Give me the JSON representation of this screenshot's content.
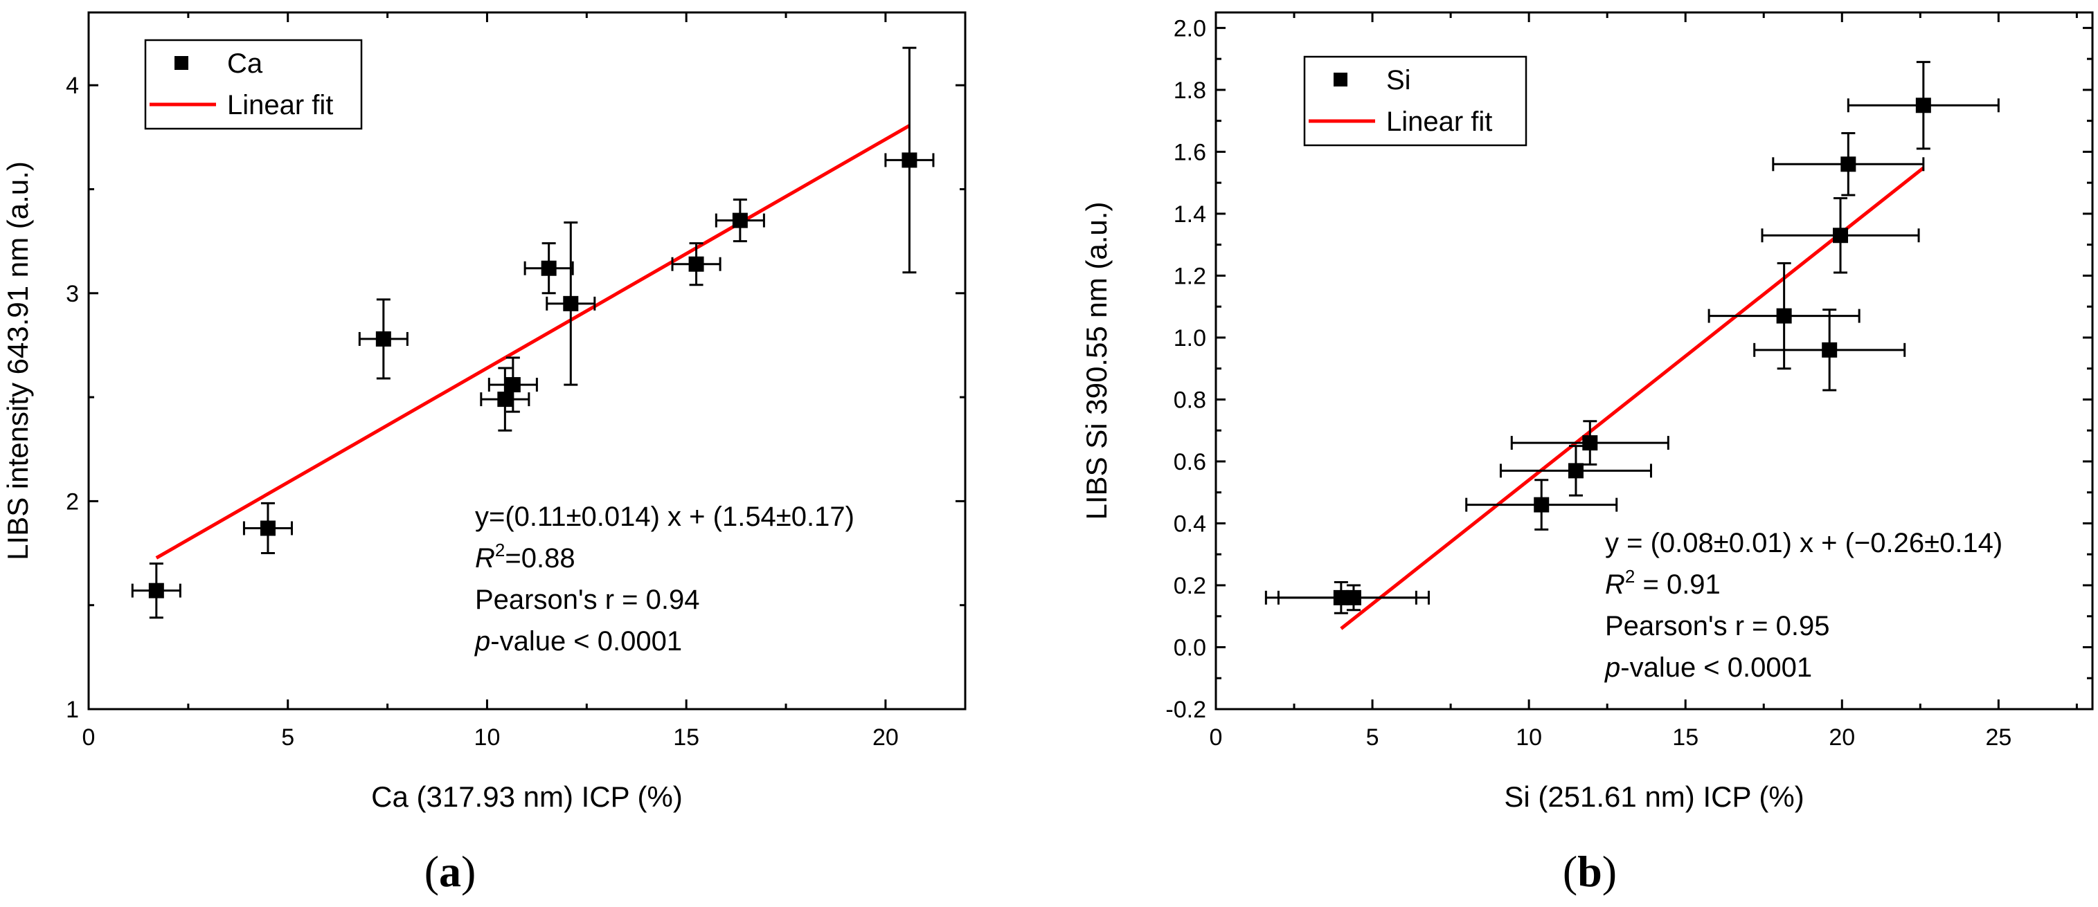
{
  "chart_data": [
    {
      "type": "scatter",
      "panel_label": "a",
      "xlabel": "Ca (317.93 nm) ICP (%)",
      "ylabel": "LIBS intensity 643.91 nm (a.u.)",
      "xlim": [
        0,
        22
      ],
      "ylim": [
        1,
        4.35
      ],
      "xticks": [
        0,
        5,
        10,
        15,
        20
      ],
      "yticks": [
        1,
        2,
        3,
        4
      ],
      "xtick_labels": [
        "0",
        "5",
        "10",
        "15",
        "20"
      ],
      "ytick_labels": [
        "1",
        "2",
        "3",
        "4"
      ],
      "grid": false,
      "legend": {
        "position": "top-left",
        "entries": [
          {
            "label": "Ca",
            "marker": "square",
            "color": "#000000"
          },
          {
            "label": "Linear fit",
            "marker": "line",
            "color": "#ff0000"
          }
        ]
      },
      "points": [
        {
          "x": 1.7,
          "y": 1.57,
          "xerr": 0.6,
          "yerr": 0.13
        },
        {
          "x": 4.5,
          "y": 1.87,
          "xerr": 0.6,
          "yerr": 0.12
        },
        {
          "x": 7.4,
          "y": 2.78,
          "xerr": 0.6,
          "yerr": 0.19
        },
        {
          "x": 10.45,
          "y": 2.49,
          "xerr": 0.6,
          "yerr": 0.15
        },
        {
          "x": 10.65,
          "y": 2.56,
          "xerr": 0.6,
          "yerr": 0.13
        },
        {
          "x": 11.55,
          "y": 3.12,
          "xerr": 0.6,
          "yerr": 0.12
        },
        {
          "x": 12.1,
          "y": 2.95,
          "xerr": 0.6,
          "yerr": 0.39
        },
        {
          "x": 15.25,
          "y": 3.14,
          "xerr": 0.6,
          "yerr": 0.1
        },
        {
          "x": 16.35,
          "y": 3.35,
          "xerr": 0.6,
          "yerr": 0.1
        },
        {
          "x": 20.6,
          "y": 3.64,
          "xerr": 0.6,
          "yerr": 0.54
        }
      ],
      "fit": {
        "slope": 0.11,
        "intercept": 1.54,
        "x_range": [
          1.7,
          20.6
        ],
        "color": "#ff0000"
      },
      "annotation": {
        "equation": "y=(0.11±0.014) x + (1.54±0.17)",
        "r2_symbol": "R",
        "r2_exp": "2",
        "r2_value": "=0.88",
        "pearson": "Pearson's r = 0.94",
        "p_symbol": "p",
        "p_value": "-value < 0.0001"
      }
    },
    {
      "type": "scatter",
      "panel_label": "b",
      "xlabel": "Si (251.61 nm) ICP (%)",
      "ylabel": "LIBS Si 390.55 nm (a.u.)",
      "xlim": [
        0,
        28
      ],
      "ylim": [
        -0.2,
        2.05
      ],
      "xticks": [
        0,
        5,
        10,
        15,
        20,
        25
      ],
      "yticks": [
        -0.2,
        0.0,
        0.2,
        0.4,
        0.6,
        0.8,
        1.0,
        1.2,
        1.4,
        1.6,
        1.8,
        2.0
      ],
      "xtick_labels": [
        "0",
        "5",
        "10",
        "15",
        "20",
        "25"
      ],
      "ytick_labels": [
        "-0.2",
        "0.0",
        "0.2",
        "0.4",
        "0.6",
        "0.8",
        "1.0",
        "1.2",
        "1.4",
        "1.6",
        "1.8",
        "2.0"
      ],
      "grid": false,
      "legend": {
        "position": "top-left",
        "entries": [
          {
            "label": "Si",
            "marker": "square",
            "color": "#000000"
          },
          {
            "label": "Linear fit",
            "marker": "line",
            "color": "#ff0000"
          }
        ]
      },
      "points": [
        {
          "x": 4.0,
          "y": 0.16,
          "xerr": 2.4,
          "yerr": 0.05
        },
        {
          "x": 4.4,
          "y": 0.16,
          "xerr": 2.4,
          "yerr": 0.04
        },
        {
          "x": 10.4,
          "y": 0.46,
          "xerr": 2.4,
          "yerr": 0.08
        },
        {
          "x": 11.5,
          "y": 0.57,
          "xerr": 2.4,
          "yerr": 0.08
        },
        {
          "x": 11.95,
          "y": 0.66,
          "xerr": 2.5,
          "yerr": 0.07
        },
        {
          "x": 18.15,
          "y": 1.07,
          "xerr": 2.4,
          "yerr": 0.17
        },
        {
          "x": 19.6,
          "y": 0.96,
          "xerr": 2.4,
          "yerr": 0.13
        },
        {
          "x": 19.95,
          "y": 1.33,
          "xerr": 2.5,
          "yerr": 0.12
        },
        {
          "x": 20.2,
          "y": 1.56,
          "xerr": 2.4,
          "yerr": 0.1
        },
        {
          "x": 22.6,
          "y": 1.75,
          "xerr": 2.4,
          "yerr": 0.14
        }
      ],
      "fit": {
        "slope": 0.08,
        "intercept": -0.26,
        "x_range": [
          4.0,
          22.6
        ],
        "color": "#ff0000"
      },
      "annotation": {
        "equation": "y = (0.08±0.01) x + (−0.26±0.14)",
        "r2_symbol": "R",
        "r2_exp": "2",
        "r2_value": " = 0.91",
        "pearson": "Pearson's r = 0.95",
        "p_symbol": "p",
        "p_value": "-value < 0.0001"
      }
    }
  ]
}
